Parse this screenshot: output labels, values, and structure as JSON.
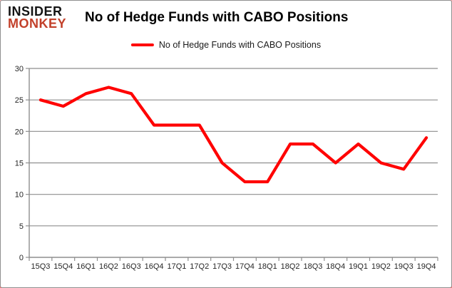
{
  "brand": {
    "line1": "INSIDER",
    "line2": "MONKEY"
  },
  "header": {
    "title": "No of Hedge Funds with CABO Positions"
  },
  "legend": {
    "label": "No of Hedge Funds with CABO Positions"
  },
  "chart_data": {
    "type": "line",
    "title": "No of Hedge Funds with CABO Positions",
    "categories": [
      "15Q3",
      "15Q4",
      "16Q1",
      "16Q2",
      "16Q3",
      "16Q4",
      "17Q1",
      "17Q2",
      "17Q3",
      "17Q4",
      "18Q1",
      "18Q2",
      "18Q3",
      "18Q4",
      "19Q1",
      "19Q2",
      "19Q3",
      "19Q4"
    ],
    "series": [
      {
        "name": "No of Hedge Funds with CABO Positions",
        "color": "#ff0000",
        "values": [
          25,
          24,
          26,
          27,
          26,
          21,
          21,
          21,
          15,
          12,
          12,
          18,
          18,
          15,
          18,
          15,
          14,
          19
        ]
      }
    ],
    "xlabel": "",
    "ylabel": "",
    "ylim": [
      0,
      30
    ],
    "ytick_step": 5,
    "grid": true,
    "legend_position": "top-center",
    "colors": {
      "line": "#ff0000",
      "grid": "#8e8e8e",
      "axis": "#8e8e8e",
      "tick_text": "#262626",
      "brand_red": "#c2402a",
      "brand_black": "#141414"
    }
  }
}
